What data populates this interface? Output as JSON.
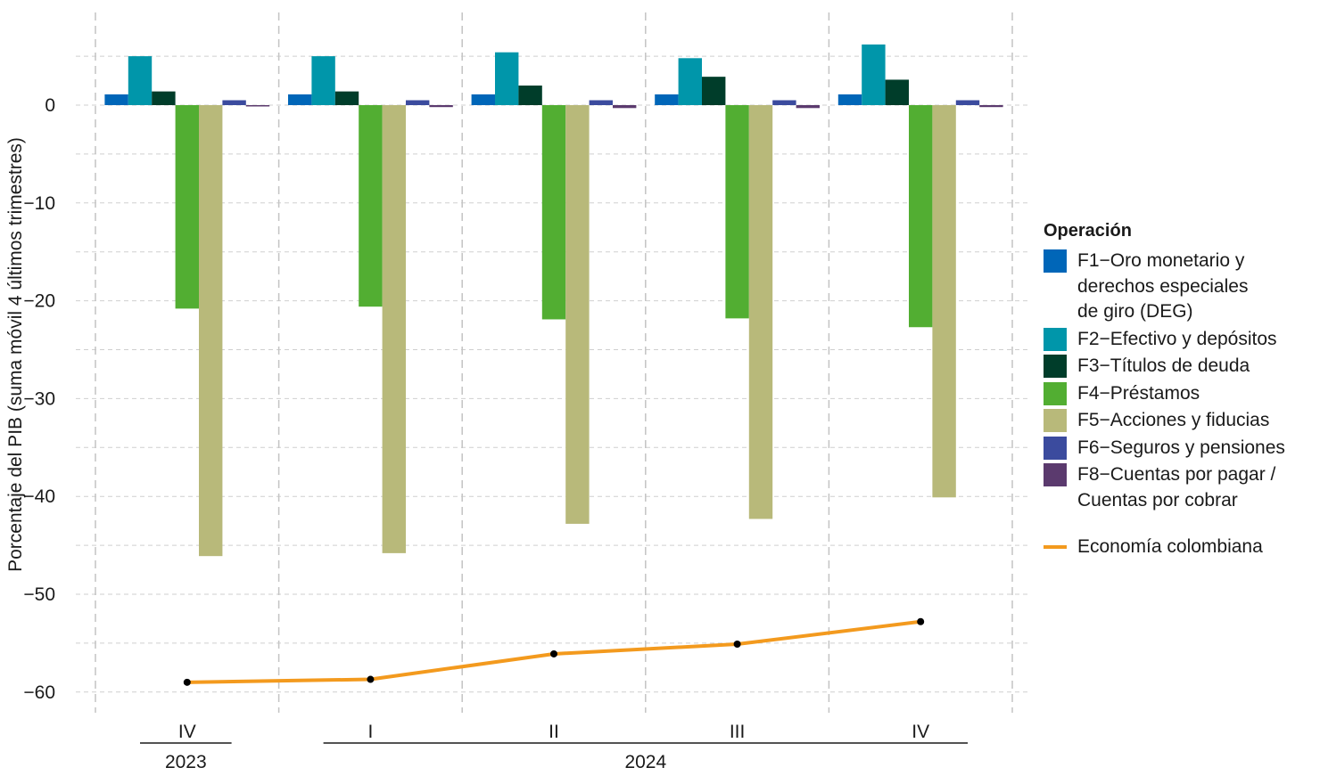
{
  "chart_data": {
    "type": "bar",
    "ylabel": "Porcentaje del PIB (suma móvil 4 últimos trimestres)",
    "ylim": [
      -62,
      8
    ],
    "yticks": [
      0,
      -10,
      -20,
      -30,
      -40,
      -50,
      -60
    ],
    "ytick_labels": [
      "0",
      "−10",
      "−20",
      "−30",
      "−40",
      "−50",
      "−60"
    ],
    "categories": [
      "IV",
      "I",
      "II",
      "III",
      "IV"
    ],
    "year_groups": [
      {
        "label": "2023",
        "from": 0,
        "to": 0
      },
      {
        "label": "2024",
        "from": 1,
        "to": 4
      }
    ],
    "legend_title": "Operación",
    "series": [
      {
        "name": "F1−Oro monetario y\nderechos especiales\nde giro (DEG)",
        "color": "#0066b8",
        "values": [
          1.1,
          1.1,
          1.1,
          1.1,
          1.1
        ]
      },
      {
        "name": "F2−Efectivo y depósitos",
        "color": "#0096aa",
        "values": [
          5.0,
          5.0,
          5.4,
          4.8,
          6.2
        ]
      },
      {
        "name": "F3−Títulos de deuda",
        "color": "#003d2a",
        "values": [
          1.4,
          1.4,
          2.0,
          2.9,
          2.6
        ]
      },
      {
        "name": "F4−Préstamos",
        "color": "#52ae32",
        "values": [
          -20.8,
          -20.6,
          -21.9,
          -21.8,
          -22.7
        ]
      },
      {
        "name": "F5−Acciones y fiducias",
        "color": "#b8b97a",
        "values": [
          -46.1,
          -45.8,
          -42.8,
          -42.3,
          -40.1
        ]
      },
      {
        "name": "F6−Seguros y pensiones",
        "color": "#3b4b9e",
        "values": [
          0.5,
          0.5,
          0.5,
          0.5,
          0.5
        ]
      },
      {
        "name": "F8−Cuentas por pagar /\nCuentas por cobrar",
        "color": "#5b3a6e",
        "values": [
          -0.1,
          -0.2,
          -0.3,
          -0.3,
          -0.2
        ]
      }
    ],
    "line_series": {
      "name": "Economía colombiana",
      "color": "#f39a1e",
      "values": [
        -59.0,
        -58.7,
        -56.1,
        -55.1,
        -52.8
      ]
    },
    "grid": true
  }
}
